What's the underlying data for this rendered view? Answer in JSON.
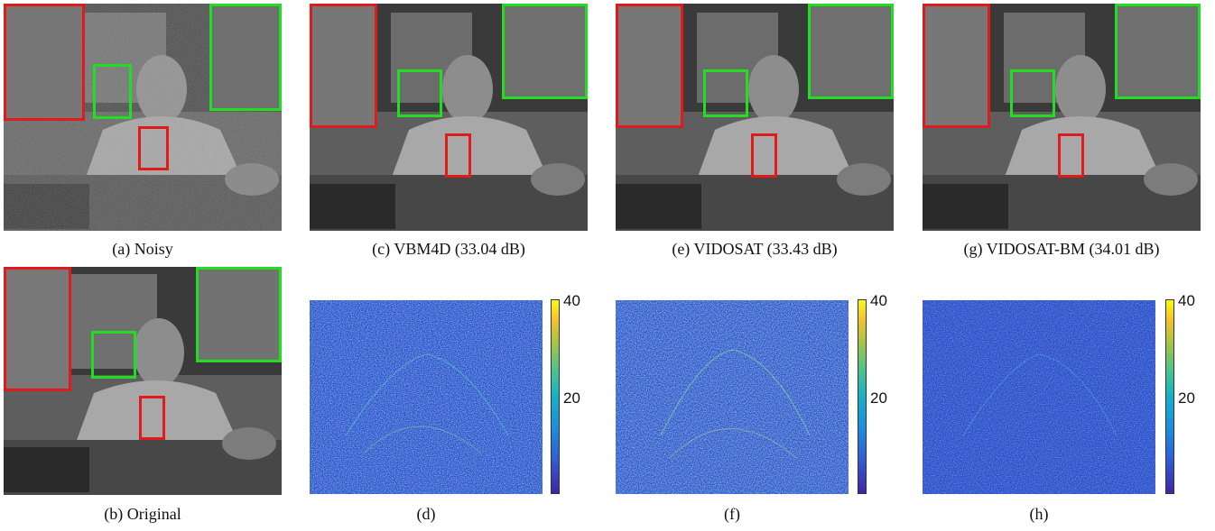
{
  "captions": {
    "a": "(a) Noisy",
    "b": "(b) Original",
    "c": "(c) VBM4D (33.04 dB)",
    "d": "(d)",
    "e": "(e) VIDOSAT (33.43 dB)",
    "f": "(f)",
    "g": "(g) VIDOSAT-BM (34.01 dB)",
    "h": "(h)"
  },
  "colorbar": {
    "max_label": "40",
    "mid_label": "20"
  },
  "colors": {
    "zoom_red": "#e01b1b",
    "zoom_green": "#22dd22"
  }
}
